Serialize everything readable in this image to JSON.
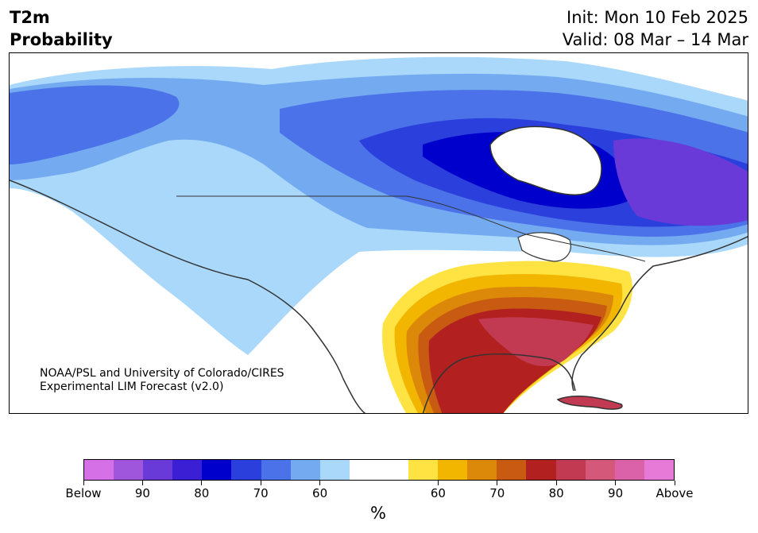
{
  "header": {
    "title_line1": "T2m",
    "title_line2": "Probability",
    "init": "Init: Mon 10 Feb 2025",
    "valid": "Valid: 08 Mar – 14 Mar"
  },
  "map": {
    "credit_line1": "NOAA/PSL and University of Colorado/CIRES",
    "credit_line2": "Experimental LIM Forecast (v2.0)",
    "colors": {
      "ocean": "#ffffff",
      "border": "#333333"
    }
  },
  "colorbar": {
    "colors": [
      "#d670e6",
      "#9f55dc",
      "#6a3ad8",
      "#3a1fd4",
      "#0000cc",
      "#2a3fdc",
      "#4b72e8",
      "#74aaf0",
      "#a9d8fb",
      "#ffffff",
      "#ffffff",
      "#ffe343",
      "#f2b600",
      "#dc8808",
      "#c85a12",
      "#b22020",
      "#c23a52",
      "#d4587a",
      "#db62a8",
      "#e67ad6"
    ],
    "labels": [
      "Below",
      "90",
      "80",
      "70",
      "60",
      "60",
      "70",
      "80",
      "90",
      "Above"
    ],
    "unit": "%"
  }
}
